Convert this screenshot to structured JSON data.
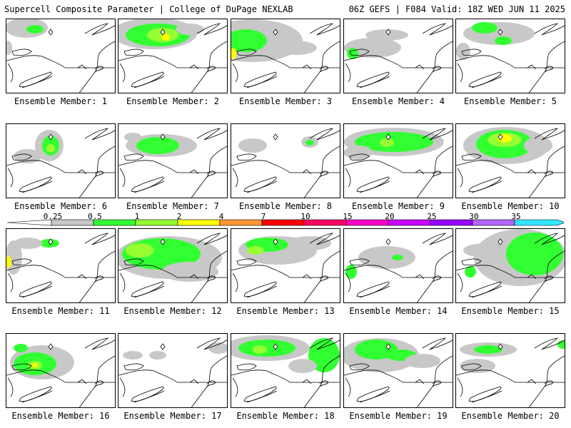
{
  "header": {
    "left": "Supercell Composite Parameter | College of DuPage NEXLAB",
    "right": "06Z GEFS | F084 Valid: 18Z WED JUN 11 2025"
  },
  "members": [
    {
      "label": "Ensemble Member: 1"
    },
    {
      "label": "Ensemble Member: 2"
    },
    {
      "label": "Ensemble Member: 3"
    },
    {
      "label": "Ensemble Member: 4"
    },
    {
      "label": "Ensemble Member: 5"
    },
    {
      "label": "Ensemble Member: 6"
    },
    {
      "label": "Ensemble Member: 7"
    },
    {
      "label": "Ensemble Member: 8"
    },
    {
      "label": "Ensemble Member: 9"
    },
    {
      "label": "Ensemble Member: 10"
    },
    {
      "label": "Ensemble Member: 11"
    },
    {
      "label": "Ensemble Member: 12"
    },
    {
      "label": "Ensemble Member: 13"
    },
    {
      "label": "Ensemble Member: 14"
    },
    {
      "label": "Ensemble Member: 15"
    },
    {
      "label": "Ensemble Member: 16"
    },
    {
      "label": "Ensemble Member: 17"
    },
    {
      "label": "Ensemble Member: 18"
    },
    {
      "label": "Ensemble Member: 19"
    },
    {
      "label": "Ensemble Member: 20"
    }
  ],
  "colorbar": {
    "ticks": [
      "0.25",
      "0.5",
      "1",
      "2",
      "4",
      "7",
      "10",
      "15",
      "20",
      "25",
      "30",
      "35"
    ],
    "colors": [
      "#c8c8c8",
      "#32ff32",
      "#96ff32",
      "#ffff00",
      "#ff9632",
      "#ff0000",
      "#ff0064",
      "#ff00c8",
      "#c800ff",
      "#9600ff",
      "#b464ff",
      "#32e6ff"
    ]
  },
  "colors": {
    "gray": "#c8c8c8",
    "green": "#32ff32",
    "lightgreen": "#96ff32",
    "yellow": "#ffff00"
  }
}
